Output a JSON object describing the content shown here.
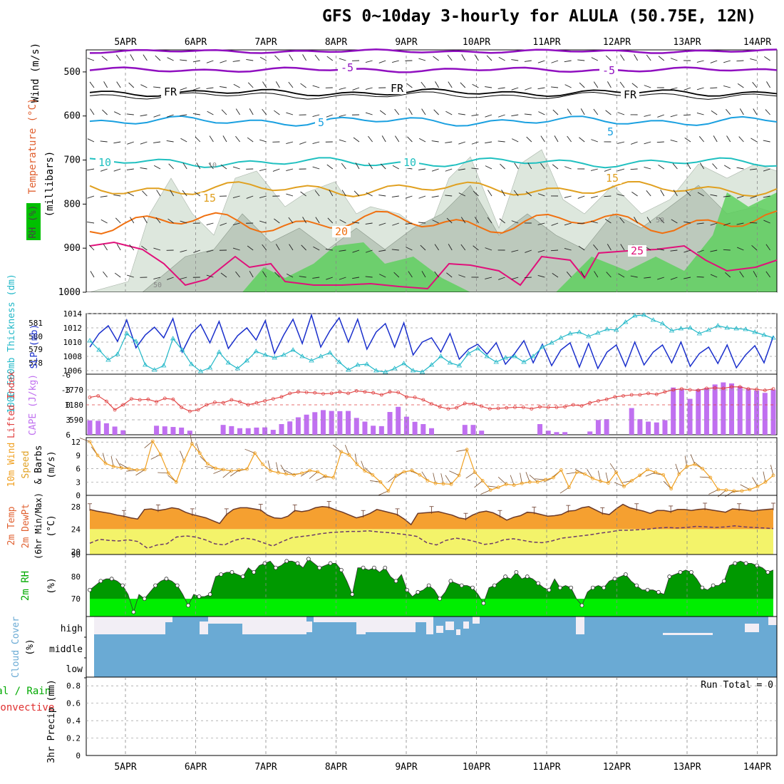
{
  "title": "GFS 0~10day 3-hourly for ALULA (50.75E, 12N)",
  "date_labels": [
    "5APR",
    "6APR",
    "7APR",
    "8APR",
    "9APR",
    "10APR",
    "11APR",
    "12APR",
    "13APR",
    "14APR"
  ],
  "colors": {
    "thickness": "#22b8c8",
    "slp": "#1a2fcc",
    "lifted": "#e04040",
    "cape": "#c070f0",
    "wind10m": "#f0a020",
    "temp": "#f5a030",
    "dewpt": "#f3f36a",
    "rh_dark": "#009900",
    "rh_light": "#00ee00",
    "cloud": "#6aaad4",
    "humid_grey": "#bcc9bc"
  },
  "chart_data": [
    {
      "type": "area",
      "id": "upper_air",
      "ylabels": [
        "Wind (m/s)",
        "Temperature (°C)",
        "RH (%)"
      ],
      "axis_unit": "(millibars)",
      "yticks": [
        500,
        600,
        700,
        800,
        900,
        1000
      ],
      "ylim": [
        1000,
        450
      ],
      "isotherm_labels": [
        "-5",
        "-5",
        "FR",
        "FR",
        "FR",
        "5",
        "5",
        "10",
        "10",
        "15",
        "15",
        "20",
        "25"
      ],
      "contour_value_labels": [
        "10",
        "50",
        "50"
      ]
    },
    {
      "type": "line",
      "id": "thickness_slp",
      "ylabel_left": "1000-500mb Thickness (dm)",
      "ylabel_right": "SLP (mb)",
      "ticks_left": [
        "581",
        "580",
        "579",
        "578"
      ],
      "ticks_right": [
        "1014",
        "1012",
        "1010",
        "1008",
        "1006"
      ],
      "ylim_slp": [
        1005.5,
        1014
      ],
      "series": [
        {
          "name": "SLP (mb)",
          "values": [
            1009.3,
            1011.2,
            1012.3,
            1010.1,
            1013.1,
            1009.2,
            1011.0,
            1012.1,
            1010.6,
            1013.3,
            1008.6,
            1011.2,
            1012.5,
            1009.9,
            1012.9,
            1009.1,
            1010.9,
            1012.0,
            1010.3,
            1013.0,
            1008.4,
            1011.0,
            1013.2,
            1009.8,
            1013.8,
            1009.3,
            1011.6,
            1013.4,
            1010.0,
            1013.2,
            1009.0,
            1011.4,
            1012.6,
            1009.3,
            1012.7,
            1008.2,
            1010.0,
            1010.6,
            1008.6,
            1011.2,
            1007.6,
            1009.0,
            1009.7,
            1008.3,
            1009.9,
            1006.9,
            1008.4,
            1010.2,
            1007.1,
            1009.7,
            1006.7,
            1008.9,
            1009.9,
            1006.5,
            1009.8,
            1006.3,
            1008.6,
            1009.6,
            1006.6,
            1010.0,
            1006.8,
            1008.6,
            1009.6,
            1007.1,
            1010.0,
            1006.6,
            1008.4,
            1009.3,
            1007.0,
            1009.6,
            1006.4,
            1008.2,
            1009.5,
            1007.1,
            1010.8
          ]
        },
        {
          "name": "1000-500mb Thickness (dm)",
          "values": [
            1010.2,
            1008.9,
            1007.5,
            1008.3,
            1011.2,
            1010.1,
            1006.8,
            1006.1,
            1006.7,
            1010.5,
            1008.9,
            1006.9,
            1005.9,
            1006.4,
            1008.6,
            1007.1,
            1006.3,
            1007.4,
            1008.7,
            1008.2,
            1007.8,
            1008.2,
            1008.9,
            1008.0,
            1007.4,
            1008.0,
            1008.5,
            1007.2,
            1006.1,
            1006.8,
            1006.9,
            1006.0,
            1005.8,
            1006.3,
            1007.0,
            1006.0,
            1005.8,
            1006.8,
            1008.0,
            1007.1,
            1006.7,
            1008.4,
            1009.1,
            1008.0,
            1007.2,
            1007.8,
            1008.0,
            1007.2,
            1008.0,
            1009.3,
            1009.9,
            1010.6,
            1011.2,
            1011.4,
            1010.8,
            1011.3,
            1011.8,
            1011.7,
            1012.8,
            1013.7,
            1013.8,
            1013.1,
            1012.6,
            1011.6,
            1011.9,
            1012.0,
            1011.2,
            1011.7,
            1012.3,
            1012.0,
            1011.9,
            1011.8,
            1011.4,
            1011.0,
            1010.6
          ]
        }
      ]
    },
    {
      "type": "bar",
      "id": "lifted_cape",
      "ylabel_left": "Lifted Index",
      "ylabel_right": "CAPE (J/kg)",
      "ticks_left": [
        "-6",
        "-3",
        "0",
        "3",
        "6"
      ],
      "ticks_right": [
        "1770",
        "1180",
        "590"
      ],
      "series": [
        {
          "name": "CAPE (J/kg)",
          "values": [
            700,
            680,
            560,
            400,
            220,
            0,
            0,
            0,
            440,
            410,
            380,
            350,
            200,
            0,
            0,
            0,
            480,
            420,
            320,
            320,
            350,
            360,
            240,
            520,
            650,
            850,
            980,
            1100,
            1200,
            1160,
            1150,
            1160,
            820,
            640,
            440,
            420,
            1110,
            1360,
            880,
            630,
            520,
            320,
            0,
            0,
            0,
            480,
            480,
            200,
            0,
            0,
            0,
            0,
            0,
            0,
            520,
            200,
            130,
            130,
            0,
            0,
            160,
            720,
            760,
            0,
            0,
            1300,
            760,
            640,
            600,
            710,
            2300,
            2210,
            1750,
            2220,
            2280,
            2450,
            2550,
            2500,
            2360,
            2260,
            2150,
            2040,
            2200
          ]
        },
        {
          "name": "Lifted Index",
          "values": [
            -1.5,
            -1.8,
            -0.7,
            1.0,
            0.0,
            -1.2,
            -1.0,
            -1.1,
            -0.6,
            -1.3,
            -1.1,
            0.5,
            1.3,
            1.0,
            0.0,
            -0.5,
            -0.4,
            -1.0,
            -0.6,
            0.0,
            -0.4,
            -0.8,
            -1.2,
            -1.6,
            -2.3,
            -2.6,
            -2.5,
            -2.4,
            -2.2,
            -2.3,
            -2.6,
            -2.3,
            -2.8,
            -2.6,
            -2.4,
            -2.0,
            -2.6,
            -2.5,
            -1.6,
            -1.5,
            -1.0,
            -0.2,
            0.4,
            0.8,
            0.6,
            -0.3,
            -0.2,
            0.3,
            0.8,
            0.7,
            0.6,
            0.5,
            0.5,
            0.8,
            0.4,
            0.5,
            0.5,
            0.4,
            0.0,
            0.2,
            -0.4,
            -0.8,
            -1.1,
            -1.6,
            -1.8,
            -2.0,
            -2.0,
            -2.3,
            -2.1,
            -2.6,
            -3.0,
            -3.2,
            -3.0,
            -2.9,
            -3.3,
            -3.4,
            -3.3,
            -3.6,
            -3.6,
            -3.2,
            -3.1,
            -2.9,
            -3.2
          ]
        }
      ]
    },
    {
      "type": "line",
      "id": "wind10m",
      "ylabel": "10m Wind Speed & Barbs (m/s)",
      "yticks": [
        0,
        3,
        6,
        9,
        12
      ],
      "ylim": [
        0,
        13
      ],
      "series": [
        {
          "name": "10m Wind Speed",
          "values": [
            12.1,
            9.0,
            7.2,
            6.5,
            6.2,
            6.0,
            5.7,
            5.8,
            12.2,
            9.2,
            5.0,
            3.0,
            7.8,
            11.6,
            9.5,
            7.1,
            6.1,
            5.8,
            5.5,
            5.7,
            5.9,
            9.5,
            7.0,
            5.5,
            5.1,
            4.8,
            4.6,
            5.0,
            5.6,
            5.3,
            4.3,
            4.0,
            9.8,
            9.1,
            7.0,
            5.5,
            4.6,
            3.0,
            1.0,
            4.5,
            5.3,
            5.6,
            4.6,
            3.3,
            2.7,
            2.6,
            2.5,
            4.5,
            10.3,
            5.2,
            3.3,
            1.2,
            1.8,
            2.5,
            2.3,
            2.7,
            3.0,
            3.0,
            3.5,
            4.0,
            5.7,
            1.8,
            5.2,
            4.8,
            3.8,
            3.2,
            2.8,
            5.2,
            2.0,
            3.3,
            4.5,
            5.8,
            5.2,
            4.6,
            1.5,
            4.8,
            6.5,
            7.0,
            6.0,
            4.0,
            1.3,
            1.2,
            1.0,
            1.0,
            1.3,
            2.0,
            3.0,
            4.5
          ]
        }
      ]
    },
    {
      "type": "area",
      "id": "temp_dewpt",
      "ylabel": "2m Temp 2m DewPt (6hr Min/Max) (°C)",
      "yticks": [
        20,
        24,
        28
      ],
      "ylim": [
        19.5,
        30
      ],
      "series": [
        {
          "name": "2m Temp",
          "values": [
            27.5,
            27.2,
            27.0,
            26.8,
            26.5,
            26.3,
            26.0,
            25.8,
            27.5,
            27.6,
            27.3,
            27.5,
            27.8,
            27.6,
            27.0,
            26.6,
            26.3,
            26.0,
            25.5,
            25.0,
            26.6,
            27.5,
            27.8,
            27.8,
            27.6,
            27.4,
            26.5,
            26.0,
            25.9,
            26.3,
            27.3,
            27.1,
            27.3,
            27.8,
            28.0,
            27.9,
            27.4,
            27.0,
            26.5,
            26.0,
            26.3,
            26.8,
            27.5,
            27.2,
            26.9,
            26.6,
            25.8,
            24.8,
            26.8,
            26.9,
            27.0,
            27.1,
            26.8,
            26.5,
            26.0,
            25.8,
            26.5,
            27.0,
            27.2,
            26.9,
            26.3,
            25.6,
            26.1,
            26.4,
            27.0,
            26.9,
            26.6,
            26.3,
            26.4,
            26.6,
            27.2,
            27.3,
            27.8,
            28.0,
            27.4,
            26.8,
            26.6,
            27.6,
            28.4,
            27.8,
            27.5,
            27.2,
            26.8,
            27.3,
            27.3,
            27.1,
            27.5,
            27.5,
            27.3,
            27.5,
            27.6,
            27.4,
            27.2,
            27.0,
            27.6,
            27.5,
            27.4,
            27.2,
            27.4,
            27.5,
            27.6
          ]
        },
        {
          "name": "2m DewPt",
          "values": [
            21.5,
            22.2,
            22.0,
            21.9,
            22.1,
            21.8,
            20.6,
            21.2,
            21.4,
            22.6,
            22.8,
            22.6,
            22.1,
            21.4,
            21.2,
            22.0,
            22.4,
            22.2,
            21.6,
            21.0,
            21.8,
            22.5,
            22.7,
            22.9,
            23.2,
            23.4,
            23.5,
            23.6,
            23.6,
            23.7,
            23.5,
            23.4,
            23.2,
            23.0,
            22.7,
            21.6,
            21.2,
            22.0,
            22.4,
            22.2,
            21.8,
            21.3,
            21.5,
            22.1,
            22.3,
            22.0,
            21.7,
            21.6,
            21.9,
            22.4,
            22.6,
            22.8,
            23.0,
            23.3,
            23.5,
            23.8,
            23.8,
            23.9,
            24.0,
            24.2,
            24.3,
            24.2,
            24.3,
            24.5,
            24.4,
            24.3,
            24.4,
            24.6,
            24.4,
            24.3,
            24.2,
            24.1
          ]
        }
      ]
    },
    {
      "type": "area",
      "id": "rh2m",
      "ylabel": "2m RH (%)",
      "yticks": [
        70,
        80,
        90
      ],
      "ylim": [
        62,
        90
      ],
      "series": [
        {
          "name": "2m RH",
          "values": [
            74,
            76,
            78,
            79,
            79,
            78,
            76,
            72,
            64,
            72,
            70,
            73,
            76,
            78,
            79,
            78,
            76,
            72,
            67,
            72,
            71,
            71,
            72,
            80,
            81,
            82,
            82,
            81,
            80,
            84,
            82,
            85,
            86,
            87,
            84,
            85,
            87,
            87,
            86,
            84,
            88,
            86,
            84,
            85,
            86,
            86,
            83,
            78,
            72,
            84,
            84,
            83,
            84,
            82,
            84,
            80,
            78,
            81,
            74,
            71,
            73,
            74,
            76,
            74,
            70,
            73,
            78,
            77,
            76,
            76,
            75,
            72,
            68,
            75,
            76,
            78,
            80,
            79,
            82,
            79,
            80,
            79,
            77,
            75,
            74,
            79,
            75,
            76,
            75,
            70,
            67,
            73,
            75,
            76,
            75,
            78,
            79,
            80,
            81,
            78,
            76,
            74,
            74,
            74,
            73,
            72,
            80,
            81,
            82,
            83,
            82,
            79,
            75,
            74,
            76,
            76,
            78,
            85,
            86,
            87,
            86,
            86,
            85,
            84,
            82,
            83
          ]
        }
      ]
    },
    {
      "type": "heatmap",
      "id": "cloud_cover",
      "ylabel": "Cloud Cover (%)",
      "ylabels_levels": [
        "high",
        "middle",
        "low"
      ]
    },
    {
      "type": "bar",
      "id": "precip",
      "ylabel": "3hr Precip (mm)",
      "ylabel_extra": [
        "Total / Rain",
        "Convective"
      ],
      "yticks": [
        "0",
        "0.2",
        "0.4",
        "0.6",
        "0.8"
      ],
      "ylim": [
        0,
        0.9
      ],
      "run_total_label": "Run Total = 0",
      "values": []
    }
  ]
}
